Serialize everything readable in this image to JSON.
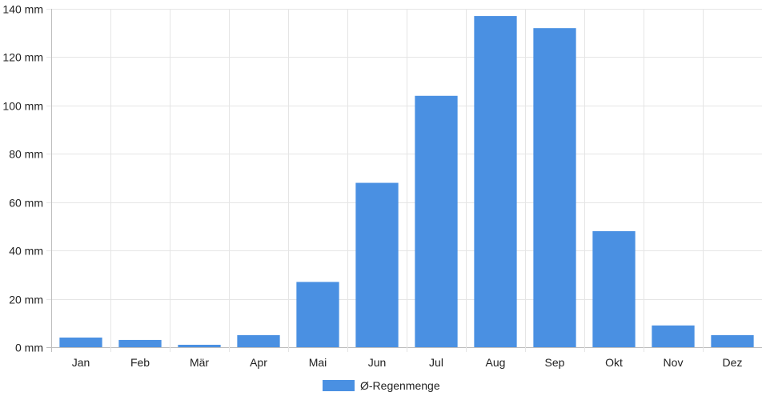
{
  "chart_data": {
    "type": "bar",
    "categories": [
      "Jan",
      "Feb",
      "Mär",
      "Apr",
      "Mai",
      "Jun",
      "Jul",
      "Aug",
      "Sep",
      "Okt",
      "Nov",
      "Dez"
    ],
    "series": [
      {
        "name": "Ø-Regenmenge",
        "values": [
          4,
          3,
          1,
          5,
          27,
          68,
          104,
          137,
          132,
          48,
          9,
          5
        ],
        "color": "#4a90e2"
      }
    ],
    "ylim": [
      0,
      140
    ],
    "ytick_values": [
      0,
      20,
      40,
      60,
      80,
      100,
      120,
      140
    ],
    "ytick_unit": "mm",
    "grid": true,
    "legend": "bottom-center"
  }
}
